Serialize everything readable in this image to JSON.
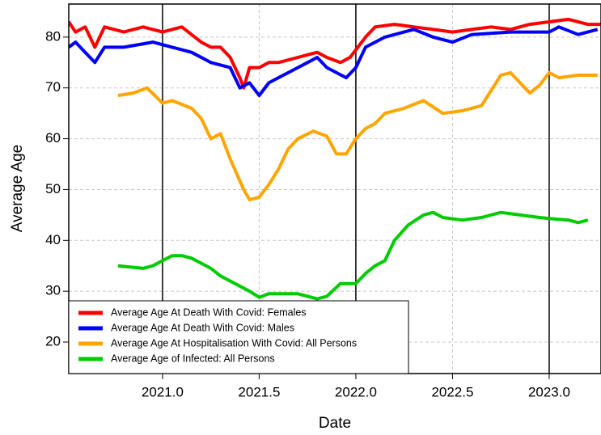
{
  "chart_data": {
    "type": "line",
    "x_label": "Date",
    "y_label": "Average Age",
    "xlim": [
      2020.515,
      2023.268
    ],
    "ylim": [
      13.8,
      86.5
    ],
    "xticks": [
      {
        "value": 2021,
        "label": "2021.0"
      },
      2021.5,
      {
        "value": 2022,
        "label": "2022.0"
      },
      2022.5,
      {
        "value": 2023,
        "label": "2023.0"
      }
    ],
    "yticks": [
      20,
      30,
      40,
      50,
      60,
      70,
      80
    ],
    "grid": true,
    "year_lines": [
      2021,
      2022,
      2023
    ],
    "legend": "bottom-left",
    "series": [
      {
        "name": "Average Age At Death With Covid: Females",
        "color": "#ff0000",
        "x": [
          2020.515,
          2020.55,
          2020.6,
          2020.65,
          2020.7,
          2020.8,
          2020.9,
          2021.0,
          2021.1,
          2021.2,
          2021.25,
          2021.3,
          2021.35,
          2021.4,
          2021.42,
          2021.45,
          2021.5,
          2021.55,
          2021.6,
          2021.7,
          2021.8,
          2021.85,
          2021.92,
          2021.97,
          2022.05,
          2022.1,
          2022.2,
          2022.3,
          2022.4,
          2022.5,
          2022.6,
          2022.7,
          2022.8,
          2022.9,
          2023.0,
          2023.1,
          2023.2,
          2023.268
        ],
        "values": [
          83,
          81,
          82,
          78,
          82,
          81,
          82,
          81,
          82,
          79,
          78,
          78,
          76,
          72,
          70,
          74,
          74,
          75,
          75,
          76,
          77,
          76,
          75,
          76,
          80,
          82,
          82.5,
          82,
          81.5,
          81,
          81.5,
          82,
          81.5,
          82.5,
          83,
          83.5,
          82.5,
          82.5
        ]
      },
      {
        "name": "Average Age At Death With Covid: Males",
        "color": "#0000ff",
        "x": [
          2020.515,
          2020.55,
          2020.6,
          2020.65,
          2020.7,
          2020.8,
          2020.95,
          2021.05,
          2021.15,
          2021.25,
          2021.35,
          2021.4,
          2021.45,
          2021.5,
          2021.55,
          2021.6,
          2021.7,
          2021.75,
          2021.8,
          2021.85,
          2021.9,
          2021.95,
          2022.0,
          2022.05,
          2022.15,
          2022.3,
          2022.4,
          2022.5,
          2022.6,
          2022.8,
          2023.0,
          2023.05,
          2023.15,
          2023.25
        ],
        "values": [
          78,
          79,
          77,
          75,
          78,
          78,
          79,
          78,
          77,
          75,
          74,
          70,
          71,
          68.5,
          71,
          72,
          74,
          75,
          76,
          74,
          73,
          72,
          74,
          78,
          80,
          81.5,
          80,
          79,
          80.5,
          81,
          81,
          82,
          80.5,
          81.5
        ]
      },
      {
        "name": "Average Age At Hospitalisation With Covid: All Persons",
        "color": "#ffa500",
        "x": [
          2020.77,
          2020.85,
          2020.92,
          2021.0,
          2021.05,
          2021.15,
          2021.2,
          2021.25,
          2021.3,
          2021.35,
          2021.42,
          2021.45,
          2021.5,
          2021.55,
          2021.6,
          2021.65,
          2021.7,
          2021.78,
          2021.85,
          2021.9,
          2021.95,
          2022.0,
          2022.05,
          2022.1,
          2022.15,
          2022.25,
          2022.35,
          2022.45,
          2022.55,
          2022.65,
          2022.75,
          2022.8,
          2022.9,
          2022.95,
          2023.0,
          2023.05,
          2023.15,
          2023.25
        ],
        "values": [
          68.5,
          69,
          70,
          67,
          67.5,
          66,
          64,
          60,
          61,
          56,
          50,
          48,
          48.5,
          51,
          54,
          58,
          60,
          61.5,
          60.5,
          57,
          57,
          60,
          62,
          63,
          65,
          66,
          67.5,
          65,
          65.5,
          66.5,
          72.5,
          73,
          69,
          70.5,
          73,
          72,
          72.5,
          72.5
        ]
      },
      {
        "name": "Average Age of Infected: All Persons",
        "color": "#00cc00",
        "x": [
          2020.77,
          2020.9,
          2020.95,
          2021.0,
          2021.05,
          2021.1,
          2021.15,
          2021.25,
          2021.3,
          2021.35,
          2021.45,
          2021.5,
          2021.55,
          2021.7,
          2021.8,
          2021.85,
          2021.92,
          2022.0,
          2022.05,
          2022.1,
          2022.15,
          2022.2,
          2022.27,
          2022.35,
          2022.4,
          2022.45,
          2022.55,
          2022.65,
          2022.75,
          2022.85,
          2022.95,
          2023.0,
          2023.1,
          2023.15,
          2023.2
        ],
        "values": [
          35,
          34.5,
          35,
          36,
          37,
          37,
          36.5,
          34.5,
          33,
          32,
          30,
          28.8,
          29.5,
          29.5,
          28.5,
          29,
          31.5,
          31.5,
          33.5,
          35,
          36,
          40,
          43,
          45,
          45.5,
          44.5,
          44,
          44.5,
          45.5,
          45,
          44.5,
          44.3,
          44,
          43.5,
          44
        ]
      }
    ]
  }
}
